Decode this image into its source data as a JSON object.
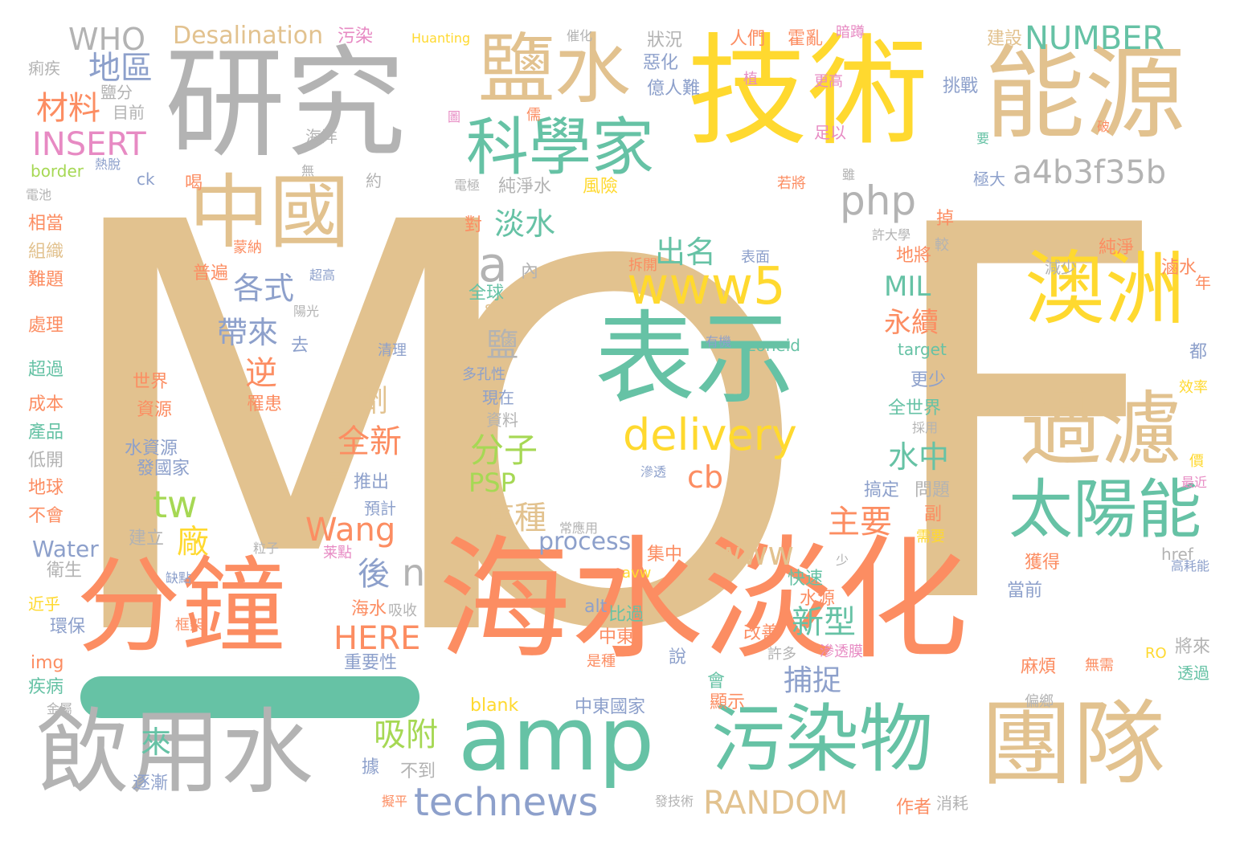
{
  "palette": {
    "tan": "#E2C28F",
    "gray": "#B3B3B3",
    "yellow": "#FFD92F",
    "coral": "#FC8D62",
    "teal": "#66C2A5",
    "blue": "#8DA0CB",
    "pink": "#E78AC3",
    "green": "#A6D854"
  },
  "words": [
    {
      "text": "M",
      "color": "#E2C28F"
    },
    {
      "text": "O",
      "color": "#E2C28F"
    },
    {
      "text": "F",
      "color": "#E2C28F"
    },
    {
      "text": "研究",
      "color": "#B3B3B3"
    },
    {
      "text": "技術",
      "color": "#FFD92F"
    },
    {
      "text": "能源",
      "color": "#E2C28F"
    },
    {
      "text": "鹽水",
      "color": "#E2C28F"
    },
    {
      "text": "科學家",
      "color": "#66C2A5"
    },
    {
      "text": "中國",
      "color": "#E2C28F"
    },
    {
      "text": "表示",
      "color": "#66C2A5"
    },
    {
      "text": "www5",
      "color": "#FFD92F"
    },
    {
      "text": "delivery",
      "color": "#FFD92F"
    },
    {
      "text": "澳洲",
      "color": "#FFD92F"
    },
    {
      "text": "過濾",
      "color": "#E2C28F"
    },
    {
      "text": "太陽能",
      "color": "#66C2A5"
    },
    {
      "text": "海水淡化",
      "color": "#FC8D62"
    },
    {
      "text": "分鐘",
      "color": "#FC8D62"
    },
    {
      "text": "amp",
      "color": "#66C2A5"
    },
    {
      "text": "飲用水",
      "color": "#B3B3B3"
    },
    {
      "text": "污染物",
      "color": "#66C2A5"
    },
    {
      "text": "團隊",
      "color": "#E2C28F"
    },
    {
      "text": "technews",
      "color": "#8DA0CB"
    },
    {
      "text": "RANDOM",
      "color": "#E2C28F"
    },
    {
      "text": "a4b3f35b",
      "color": "#B3B3B3"
    },
    {
      "text": "NUMBER",
      "color": "#66C2A5"
    },
    {
      "text": "WHO",
      "color": "#B3B3B3"
    },
    {
      "text": "Desalination",
      "color": "#E2C28F"
    },
    {
      "text": "地區",
      "color": "#8DA0CB"
    },
    {
      "text": "材料",
      "color": "#FC8D62"
    },
    {
      "text": "INSERT",
      "color": "#E78AC3"
    },
    {
      "text": "php",
      "color": "#B3B3B3"
    },
    {
      "text": "淡水",
      "color": "#66C2A5"
    },
    {
      "text": "a",
      "color": "#B3B3B3"
    },
    {
      "text": "出名",
      "color": "#66C2A5"
    },
    {
      "text": "各式",
      "color": "#8DA0CB"
    },
    {
      "text": "帶來",
      "color": "#8DA0CB"
    },
    {
      "text": "MIL",
      "color": "#66C2A5"
    },
    {
      "text": "永續",
      "color": "#FC8D62"
    },
    {
      "text": "鹽",
      "color": "#B3B3B3"
    },
    {
      "text": "逆",
      "color": "#FC8D62"
    },
    {
      "text": "劑",
      "color": "#E2C28F"
    },
    {
      "text": "全新",
      "color": "#FC8D62"
    },
    {
      "text": "分子",
      "color": "#A6D854"
    },
    {
      "text": "PSP",
      "color": "#A6D854"
    },
    {
      "text": "cb",
      "color": "#FC8D62"
    },
    {
      "text": "tw",
      "color": "#A6D854"
    },
    {
      "text": "這種",
      "color": "#E2C28F"
    },
    {
      "text": "Wang",
      "color": "#FC8D62"
    },
    {
      "text": "廠",
      "color": "#FFD92F"
    },
    {
      "text": "www",
      "color": "#E2C28F"
    },
    {
      "text": "process",
      "color": "#8DA0CB"
    },
    {
      "text": "主要",
      "color": "#FC8D62"
    },
    {
      "text": "水中",
      "color": "#66C2A5"
    },
    {
      "text": "新型",
      "color": "#66C2A5"
    },
    {
      "text": "捕捉",
      "color": "#8DA0CB"
    },
    {
      "text": "後",
      "color": "#8DA0CB"
    },
    {
      "text": "n",
      "color": "#B3B3B3"
    },
    {
      "text": "HERE",
      "color": "#FC8D62"
    },
    {
      "text": "Water",
      "color": "#8DA0CB"
    },
    {
      "text": "吸附",
      "color": "#A6D854"
    },
    {
      "text": "來",
      "color": "#66C2A5"
    },
    {
      "text": "Huanting",
      "color": "#FFD92F"
    },
    {
      "text": "污染",
      "color": "#E78AC3"
    },
    {
      "text": "痢疾",
      "color": "#B3B3B3"
    },
    {
      "text": "目前",
      "color": "#B3B3B3"
    },
    {
      "text": "鹽分",
      "color": "#B3B3B3"
    },
    {
      "text": "border",
      "color": "#A6D854"
    },
    {
      "text": "ck",
      "color": "#8DA0CB"
    },
    {
      "text": "熱脫",
      "color": "#8DA0CB"
    },
    {
      "text": "約",
      "color": "#B3B3B3"
    },
    {
      "text": "純淨水",
      "color": "#B3B3B3"
    },
    {
      "text": "風險",
      "color": "#FFD92F"
    },
    {
      "text": "電池",
      "color": "#B3B3B3"
    },
    {
      "text": "相當",
      "color": "#FC8D62"
    },
    {
      "text": "組織",
      "color": "#E2C28F"
    },
    {
      "text": "難題",
      "color": "#FC8D62"
    },
    {
      "text": "處理",
      "color": "#FC8D62"
    },
    {
      "text": "超過",
      "color": "#66C2A5"
    },
    {
      "text": "成本",
      "color": "#FC8D62"
    },
    {
      "text": "產品",
      "color": "#66C2A5"
    },
    {
      "text": "低開",
      "color": "#B3B3B3"
    },
    {
      "text": "地球",
      "color": "#FC8D62"
    },
    {
      "text": "不會",
      "color": "#FC8D62"
    },
    {
      "text": "衛生",
      "color": "#B3B3B3"
    },
    {
      "text": "近乎",
      "color": "#FFD92F"
    },
    {
      "text": "環保",
      "color": "#8DA0CB"
    },
    {
      "text": "img",
      "color": "#FC8D62"
    },
    {
      "text": "疾病",
      "color": "#66C2A5"
    },
    {
      "text": "金屬",
      "color": "#B3B3B3"
    },
    {
      "text": "世界",
      "color": "#FC8D62"
    },
    {
      "text": "資源",
      "color": "#FC8D62"
    },
    {
      "text": "水資源",
      "color": "#8DA0CB"
    },
    {
      "text": "發國家",
      "color": "#8DA0CB"
    },
    {
      "text": "罹患",
      "color": "#FC8D62"
    },
    {
      "text": "建立",
      "color": "#B3B3B3"
    },
    {
      "text": "粒子",
      "color": "#B3B3B3"
    },
    {
      "text": "缺點",
      "color": "#8DA0CB"
    },
    {
      "text": "框架",
      "color": "#FC8D62"
    },
    {
      "text": "逐漸",
      "color": "#8DA0CB"
    },
    {
      "text": "擬平",
      "color": "#FC8D62"
    },
    {
      "text": "普遍",
      "color": "#FC8D62"
    },
    {
      "text": "蒙納",
      "color": "#FC8D62"
    },
    {
      "text": "陽光",
      "color": "#B3B3B3"
    },
    {
      "text": "去",
      "color": "#8DA0CB"
    },
    {
      "text": "超高",
      "color": "#8DA0CB"
    },
    {
      "text": "內",
      "color": "#B3B3B3"
    },
    {
      "text": "全球",
      "color": "#66C2A5"
    },
    {
      "text": "src",
      "color": "#E2C28F"
    },
    {
      "text": "清理",
      "color": "#8DA0CB"
    },
    {
      "text": "多孔性",
      "color": "#8DA0CB"
    },
    {
      "text": "現在",
      "color": "#8DA0CB"
    },
    {
      "text": "資料",
      "color": "#B3B3B3"
    },
    {
      "text": "高",
      "color": "#E2C28F"
    },
    {
      "text": "推出",
      "color": "#8DA0CB"
    },
    {
      "text": "預計",
      "color": "#8DA0CB"
    },
    {
      "text": "海水",
      "color": "#FC8D62"
    },
    {
      "text": "吸收",
      "color": "#B3B3B3"
    },
    {
      "text": "重要性",
      "color": "#8DA0CB"
    },
    {
      "text": "據",
      "color": "#8DA0CB"
    },
    {
      "text": "不到",
      "color": "#B3B3B3"
    },
    {
      "text": "blank",
      "color": "#FFD92F"
    },
    {
      "text": "常應用",
      "color": "#B3B3B3"
    },
    {
      "text": "莱點",
      "color": "#E78AC3"
    },
    {
      "text": "avw",
      "color": "#FFD92F"
    },
    {
      "text": "集中",
      "color": "#FC8D62"
    },
    {
      "text": "alt",
      "color": "#8DA0CB"
    },
    {
      "text": "比過",
      "color": "#66C2A5"
    },
    {
      "text": "中東",
      "color": "#FC8D62"
    },
    {
      "text": "是種",
      "color": "#FC8D62"
    },
    {
      "text": "中東國家",
      "color": "#8DA0CB"
    },
    {
      "text": "會",
      "color": "#66C2A5"
    },
    {
      "text": "顯示",
      "color": "#FC8D62"
    },
    {
      "text": "說",
      "color": "#8DA0CB"
    },
    {
      "text": "改善",
      "color": "#FC8D62"
    },
    {
      "text": "許多",
      "color": "#B3B3B3"
    },
    {
      "text": "快速",
      "color": "#66C2A5"
    },
    {
      "text": "水源",
      "color": "#FC8D62"
    },
    {
      "text": "少",
      "color": "#B3B3B3"
    },
    {
      "text": "滲透膜",
      "color": "#E78AC3"
    },
    {
      "text": "滲透",
      "color": "#8DA0CB"
    },
    {
      "text": "搞定",
      "color": "#8DA0CB"
    },
    {
      "text": "問題",
      "color": "#B3B3B3"
    },
    {
      "text": "副",
      "color": "#FC8D62"
    },
    {
      "text": "需要",
      "color": "#FFD92F"
    },
    {
      "text": "獲得",
      "color": "#FC8D62"
    },
    {
      "text": "當前",
      "color": "#8DA0CB"
    },
    {
      "text": "麻煩",
      "color": "#FC8D62"
    },
    {
      "text": "偏鄉",
      "color": "#B3B3B3"
    },
    {
      "text": "作者",
      "color": "#FC8D62"
    },
    {
      "text": "消耗",
      "color": "#B3B3B3"
    },
    {
      "text": "發技術",
      "color": "#B3B3B3"
    },
    {
      "text": "href",
      "color": "#B3B3B3"
    },
    {
      "text": "高耗能",
      "color": "#8DA0CB"
    },
    {
      "text": "RO",
      "color": "#FFD92F"
    },
    {
      "text": "無需",
      "color": "#FC8D62"
    },
    {
      "text": "將來",
      "color": "#B3B3B3"
    },
    {
      "text": "透過",
      "color": "#66C2A5"
    },
    {
      "text": "全世界",
      "color": "#66C2A5"
    },
    {
      "text": "採用",
      "color": "#B3B3B3"
    },
    {
      "text": "更少",
      "color": "#8DA0CB"
    },
    {
      "text": "target",
      "color": "#66C2A5"
    },
    {
      "text": "zoneid",
      "color": "#66C2A5"
    },
    {
      "text": "有機",
      "color": "#8DA0CB"
    },
    {
      "text": "都",
      "color": "#8DA0CB"
    },
    {
      "text": "效率",
      "color": "#FFD92F"
    },
    {
      "text": "價",
      "color": "#FFD92F"
    },
    {
      "text": "最近",
      "color": "#E78AC3"
    },
    {
      "text": "年",
      "color": "#FC8D62"
    },
    {
      "text": "滷水",
      "color": "#FC8D62"
    },
    {
      "text": "減少",
      "color": "#B3B3B3"
    },
    {
      "text": "純淨",
      "color": "#FC8D62"
    },
    {
      "text": "地將",
      "color": "#FC8D62"
    },
    {
      "text": "較",
      "color": "#B3B3B3"
    },
    {
      "text": "許大學",
      "color": "#B3B3B3"
    },
    {
      "text": "掉",
      "color": "#FC8D62"
    },
    {
      "text": "表面",
      "color": "#8DA0CB"
    },
    {
      "text": "拆開",
      "color": "#FC8D62"
    },
    {
      "text": "若將",
      "color": "#FC8D62"
    },
    {
      "text": "極大",
      "color": "#8DA0CB"
    },
    {
      "text": "雖",
      "color": "#B3B3B3"
    },
    {
      "text": "要",
      "color": "#66C2A5"
    },
    {
      "text": "破",
      "color": "#FC8D62"
    },
    {
      "text": "建設",
      "color": "#E2C28F"
    },
    {
      "text": "挑戰",
      "color": "#8DA0CB"
    },
    {
      "text": "更高",
      "color": "#E78AC3"
    },
    {
      "text": "足以",
      "color": "#E78AC3"
    },
    {
      "text": "狀況",
      "color": "#B3B3B3"
    },
    {
      "text": "惡化",
      "color": "#8DA0CB"
    },
    {
      "text": "億人難",
      "color": "#8DA0CB"
    },
    {
      "text": "人們",
      "color": "#FC8D62"
    },
    {
      "text": "霍亂",
      "color": "#FC8D62"
    },
    {
      "text": "暗蹲",
      "color": "#E78AC3"
    },
    {
      "text": "催化",
      "color": "#B3B3B3"
    },
    {
      "text": "植",
      "color": "#E78AC3"
    },
    {
      "text": "電極",
      "color": "#B3B3B3"
    },
    {
      "text": "對",
      "color": "#FC8D62"
    },
    {
      "text": "喝",
      "color": "#FC8D62"
    },
    {
      "text": "無",
      "color": "#B3B3B3"
    },
    {
      "text": "海洋",
      "color": "#B3B3B3"
    },
    {
      "text": "圖",
      "color": "#E78AC3"
    },
    {
      "text": "儒",
      "color": "#FC8D62"
    }
  ]
}
